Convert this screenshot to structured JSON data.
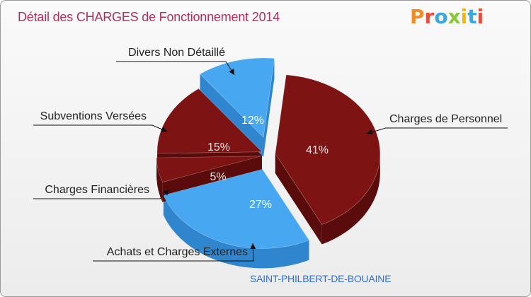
{
  "header": {
    "title": "Détail des CHARGES de Fonctionnement 2014",
    "logo": "Proxiti",
    "subtitle": "SAINT-PHILBERT-DE-BOUAINE"
  },
  "chart_data": {
    "type": "pie",
    "title": "Détail des CHARGES de Fonctionnement 2014",
    "subtitle": "SAINT-PHILBERT-DE-BOUAINE",
    "unit": "%",
    "slices": [
      {
        "label": "Charges de Personnel",
        "value": 41,
        "pct_label": "41%",
        "color": "#7d1313"
      },
      {
        "label": "Achats et Charges Externes",
        "value": 27,
        "pct_label": "27%",
        "color": "#47a7f0"
      },
      {
        "label": "Charges Financières",
        "value": 5,
        "pct_label": "5%",
        "color": "#7d1313"
      },
      {
        "label": "Subventions Versées",
        "value": 15,
        "pct_label": "15%",
        "color": "#7d1313"
      },
      {
        "label": "Divers Non Détaillé",
        "value": 12,
        "pct_label": "12%",
        "color": "#47a7f0"
      }
    ]
  },
  "colors": {
    "title": "#b0305a",
    "subtitle": "#2f6fd6",
    "dark_red": "#7d1313",
    "dark_red_side": "#5a0b0b",
    "blue": "#47a7f0",
    "blue_side": "#2f86cf",
    "logo_letters": [
      "#f28c28",
      "#e94e3c",
      "#3aa8e0",
      "#8cc63f",
      "#f7b500",
      "#3aa8e0",
      "#e94e3c"
    ]
  }
}
